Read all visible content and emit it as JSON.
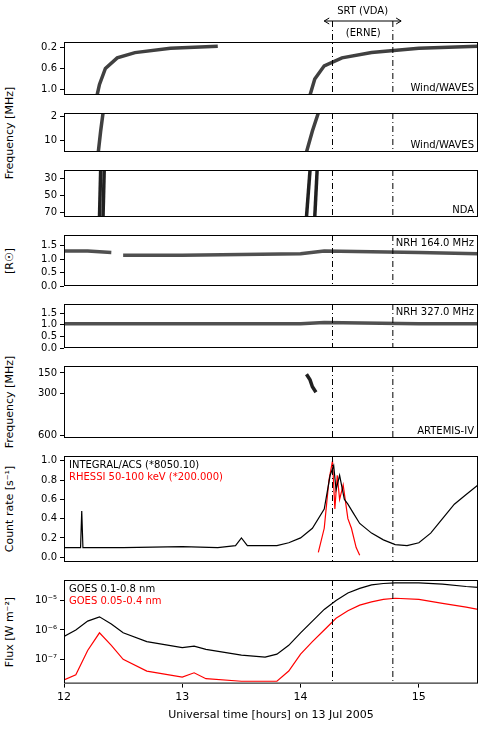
{
  "chart_data": [
    {
      "type": "line",
      "title": "Wind/WAVES",
      "ylim": [
        1.1,
        0.1
      ],
      "yticks": [
        0.2,
        0.6,
        {
          "value": 1,
          "label": "1.0"
        }
      ],
      "xlim": [
        12,
        15.5
      ],
      "xticks": [
        12,
        13,
        14,
        15
      ],
      "grid": false,
      "tick_labels": "y",
      "vlines": [
        14.27,
        14.78
      ],
      "annotations": [
        {
          "text": "SRT (VDA)",
          "x": [
            14.2,
            14.85
          ]
        },
        {
          "text": "(ERNE)",
          "x": 14.53
        }
      ],
      "series": [
        {
          "color": "#404040",
          "x": [
            12.28,
            12.3,
            12.35,
            12.45,
            12.6,
            12.9,
            13.3
          ],
          "values": [
            1.1,
            0.9,
            0.6,
            0.4,
            0.3,
            0.22,
            0.18
          ]
        },
        {
          "color": "#404040",
          "x": [
            14.08,
            14.12,
            14.2,
            14.35,
            14.6,
            15.0,
            15.5
          ],
          "values": [
            1.1,
            0.8,
            0.55,
            0.4,
            0.3,
            0.22,
            0.18
          ]
        }
      ]
    },
    {
      "type": "line",
      "title": "Wind/WAVES",
      "ylabel": "Frequency [MHz]",
      "ylim": [
        14,
        1
      ],
      "yticks": [
        2,
        10
      ],
      "xlim": [
        12,
        15.5
      ],
      "xticks": [
        12,
        13,
        14,
        15
      ],
      "grid": false,
      "tick_labels": "y",
      "vlines": [
        14.27,
        14.78
      ],
      "series": [
        {
          "color": "#404040",
          "x": [
            12.29,
            12.31,
            12.33
          ],
          "values": [
            14,
            7,
            1
          ]
        },
        {
          "color": "#404040",
          "x": [
            14.05,
            14.1,
            14.15
          ],
          "values": [
            14,
            7,
            1
          ]
        }
      ]
    },
    {
      "type": "line",
      "title": "NDA",
      "ylim": [
        75,
        20
      ],
      "yticks": [
        30,
        50,
        70
      ],
      "xlim": [
        12,
        15.5
      ],
      "xticks": [
        12,
        13,
        14,
        15
      ],
      "grid": false,
      "tick_labels": "y",
      "vlines": [
        14.27,
        14.78
      ],
      "series": [
        {
          "color": "#202020",
          "x": [
            12.3,
            12.31
          ],
          "values": [
            75,
            20
          ]
        },
        {
          "color": "#202020",
          "x": [
            12.33,
            12.34
          ],
          "values": [
            75,
            20
          ]
        },
        {
          "color": "#202020",
          "x": [
            14.05,
            14.08
          ],
          "values": [
            75,
            20
          ]
        },
        {
          "color": "#202020",
          "x": [
            14.12,
            14.14
          ],
          "values": [
            75,
            20
          ]
        }
      ]
    },
    {
      "type": "line",
      "title": "NRH 164.0 MHz",
      "ylabel": "[R☉]",
      "ylim": [
        0,
        1.9
      ],
      "yticks": [
        {
          "value": 0,
          "label": "0.0"
        },
        0.5,
        {
          "value": 1,
          "label": "1.0"
        },
        1.5
      ],
      "xlim": [
        12,
        15.5
      ],
      "xticks": [
        12,
        13,
        14,
        15
      ],
      "grid": false,
      "tick_labels": "y",
      "vlines": [
        14.27,
        14.78
      ],
      "series": [
        {
          "color": "#505050",
          "x": [
            12.0,
            12.2,
            12.4
          ],
          "values": [
            1.3,
            1.3,
            1.25
          ]
        },
        {
          "color": "#505050",
          "x": [
            12.5,
            13.0,
            14.0,
            14.2,
            15.0,
            15.5
          ],
          "values": [
            1.15,
            1.15,
            1.2,
            1.3,
            1.25,
            1.2
          ]
        }
      ]
    },
    {
      "type": "line",
      "title": "NRH 327.0 MHz",
      "ylim": [
        0,
        1.9
      ],
      "yticks": [
        {
          "value": 0,
          "label": "0.0"
        },
        0.5,
        {
          "value": 1,
          "label": "1.0"
        },
        1.5
      ],
      "xlim": [
        12,
        15.5
      ],
      "xticks": [
        12,
        13,
        14,
        15
      ],
      "grid": false,
      "tick_labels": "y",
      "vlines": [
        14.27,
        14.78
      ],
      "series": [
        {
          "color": "#505050",
          "x": [
            12.0,
            13.0,
            14.0,
            14.2,
            15.0,
            15.5
          ],
          "values": [
            1.05,
            1.05,
            1.05,
            1.1,
            1.05,
            1.05
          ]
        }
      ]
    },
    {
      "type": "line",
      "title": "ARTEMIS-IV",
      "ylabel": "Frequency [MHz]",
      "ylim": [
        620,
        100
      ],
      "yticks": [
        150,
        300,
        600
      ],
      "xlim": [
        12,
        15.5
      ],
      "xticks": [
        12,
        13,
        14,
        15
      ],
      "grid": false,
      "tick_labels": "y",
      "vlines": [
        14.27,
        14.78
      ],
      "series": [
        {
          "color": "#202020",
          "x": [
            14.05,
            14.08,
            14.1,
            14.13
          ],
          "values": [
            160,
            200,
            250,
            290
          ]
        }
      ]
    },
    {
      "type": "line",
      "ylabel": "Count rate [s⁻¹]",
      "ylim": [
        -0.05,
        1.05
      ],
      "yticks": [
        {
          "value": 0,
          "label": "0.0"
        },
        0.2,
        0.4,
        0.6,
        0.8,
        {
          "value": 1,
          "label": "1.0"
        }
      ],
      "xlim": [
        12,
        15.5
      ],
      "xticks": [
        12,
        13,
        14,
        15
      ],
      "grid": false,
      "tick_labels": "y",
      "legend": "upper left",
      "vlines": [
        14.27,
        14.78
      ],
      "series": [
        {
          "name": "INTEGRAL/ACS (*8050.10)",
          "color": "#000000",
          "x": [
            12.0,
            12.1,
            12.14,
            12.15,
            12.16,
            12.5,
            13.0,
            13.3,
            13.45,
            13.5,
            13.55,
            13.8,
            13.9,
            14.0,
            14.1,
            14.2,
            14.25,
            14.28,
            14.3,
            14.33,
            14.37,
            14.4,
            14.45,
            14.5,
            14.6,
            14.7,
            14.8,
            14.9,
            15.0,
            15.1,
            15.2,
            15.3,
            15.4,
            15.5
          ],
          "values": [
            0.1,
            0.1,
            0.1,
            0.48,
            0.1,
            0.1,
            0.11,
            0.1,
            0.12,
            0.2,
            0.12,
            0.12,
            0.15,
            0.2,
            0.3,
            0.5,
            0.85,
            0.95,
            0.7,
            0.85,
            0.6,
            0.55,
            0.45,
            0.35,
            0.25,
            0.18,
            0.13,
            0.12,
            0.15,
            0.25,
            0.4,
            0.55,
            0.65,
            0.75
          ]
        },
        {
          "name": "RHESSI 50-100 keV (*200.000)",
          "color": "#ff0000",
          "x": [
            14.15,
            14.2,
            14.24,
            14.27,
            14.29,
            14.31,
            14.33,
            14.36,
            14.4,
            14.43,
            14.47,
            14.5
          ],
          "values": [
            0.05,
            0.3,
            0.8,
            1.0,
            0.5,
            0.85,
            0.6,
            0.75,
            0.4,
            0.3,
            0.1,
            0.02
          ]
        }
      ]
    },
    {
      "type": "line",
      "ylabel": "Flux [W m⁻²]",
      "xlabel": "Universal time [hours] on 13 Jul 2005",
      "log": "y",
      "ylim": [
        1.5e-08,
        5e-05
      ],
      "yticks": [
        {
          "value": 1e-07,
          "label": "10⁻⁷"
        },
        {
          "value": 1e-06,
          "label": "10⁻⁶"
        },
        {
          "value": 1e-05,
          "label": "10⁻⁵"
        }
      ],
      "xlim": [
        12,
        15.5
      ],
      "xticks": [
        12,
        13,
        14,
        15
      ],
      "grid": false,
      "legend": "upper left",
      "vlines": [
        14.27,
        14.78
      ],
      "series": [
        {
          "name": "GOES 0.1-0.8 nm",
          "color": "#000000",
          "x": [
            12.0,
            12.1,
            12.2,
            12.3,
            12.4,
            12.5,
            12.7,
            13.0,
            13.1,
            13.2,
            13.5,
            13.7,
            13.8,
            13.9,
            14.0,
            14.1,
            14.2,
            14.3,
            14.4,
            14.5,
            14.6,
            14.7,
            14.8,
            15.0,
            15.2,
            15.4,
            15.5
          ],
          "values": [
            6e-07,
            1e-06,
            2e-06,
            2.8e-06,
            1.6e-06,
            8e-07,
            4e-07,
            2.5e-07,
            2.8e-07,
            2.2e-07,
            1.4e-07,
            1.2e-07,
            1.5e-07,
            3e-07,
            8e-07,
            2e-06,
            5e-06,
            1e-05,
            1.8e-05,
            2.6e-05,
            3.4e-05,
            3.8e-05,
            4e-05,
            4e-05,
            3.6e-05,
            3e-05,
            2.8e-05
          ]
        },
        {
          "name": "GOES 0.05-0.4 nm",
          "color": "#ff0000",
          "x": [
            12.0,
            12.1,
            12.2,
            12.3,
            12.4,
            12.5,
            12.7,
            13.0,
            13.1,
            13.2,
            13.5,
            13.8,
            13.9,
            14.0,
            14.1,
            14.2,
            14.3,
            14.4,
            14.5,
            14.6,
            14.7,
            14.8,
            15.0,
            15.2,
            15.4,
            15.5
          ],
          "values": [
            2e-08,
            3e-08,
            2e-07,
            8e-07,
            3e-07,
            1e-07,
            4e-08,
            2.5e-08,
            3.5e-08,
            2.2e-08,
            1.8e-08,
            1.8e-08,
            4e-08,
            1.5e-07,
            4e-07,
            1e-06,
            2.5e-06,
            4.5e-06,
            7e-06,
            9e-06,
            1.1e-05,
            1.2e-05,
            1.1e-05,
            8e-06,
            6e-06,
            5e-06
          ]
        }
      ]
    }
  ]
}
